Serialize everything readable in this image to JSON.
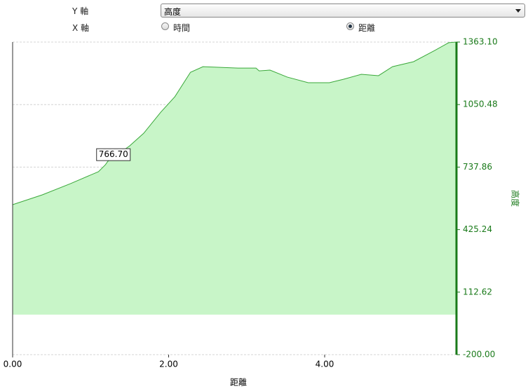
{
  "controls": {
    "y_axis_label": "Y 軸",
    "y_axis_value": "高度",
    "x_axis_label": "X 軸",
    "x_option_time": "時間",
    "x_option_distance": "距離"
  },
  "chart_data": {
    "type": "area",
    "y_axis_title": "高度",
    "x_axis_title": "距離",
    "color": "#3aa83a",
    "fill": "#c8f5c8",
    "axis_color": "#1a7a1a",
    "x": [
      0,
      0.38,
      0.74,
      1.1,
      1.19,
      1.22,
      1.5,
      1.68,
      1.9,
      2.08,
      2.28,
      2.44,
      2.89,
      3.12,
      3.16,
      3.3,
      3.52,
      3.79,
      4.06,
      4.24,
      4.47,
      4.69,
      4.87,
      5.14,
      5.41,
      5.59,
      5.69
    ],
    "values": [
      550,
      599,
      655,
      715,
      750,
      766.7,
      844,
      907,
      1013,
      1090,
      1212,
      1240,
      1233,
      1233,
      1219,
      1223,
      1188,
      1160,
      1160,
      1177,
      1202,
      1195,
      1240,
      1265,
      1321,
      1360,
      1363.1
    ],
    "tooltip": {
      "x": 1.22,
      "value": 766.7,
      "label": "766.70"
    },
    "xlim": [
      0,
      5.69
    ],
    "ylim": [
      -200,
      1363.1
    ],
    "xticks": [
      {
        "value": 0,
        "label": "0.00"
      },
      {
        "value": 2,
        "label": "2.00"
      },
      {
        "value": 4,
        "label": "4.00"
      }
    ],
    "yticks": [
      {
        "value": -200,
        "label": "-200.00"
      },
      {
        "value": 112.62,
        "label": "112.62"
      },
      {
        "value": 425.24,
        "label": "425.24"
      },
      {
        "value": 737.86,
        "label": "737.86"
      },
      {
        "value": 1050.48,
        "label": "1050.48"
      },
      {
        "value": 1363.1,
        "label": "1363.10"
      }
    ],
    "grid": true
  }
}
